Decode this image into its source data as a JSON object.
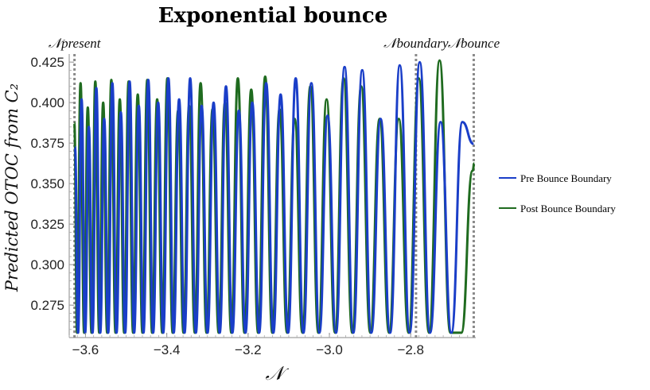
{
  "chart_data": {
    "type": "line",
    "title": "Exponential bounce",
    "xlabel": "𝒩",
    "ylabel": "Predicted OTOC from C₂",
    "xlim": [
      -3.64,
      -2.64
    ],
    "ylim": [
      0.255,
      0.43
    ],
    "x_ticks": [
      -3.6,
      -3.4,
      -3.2,
      -3.0,
      -2.8
    ],
    "x_tick_labels": [
      "−3.6",
      "−3.4",
      "−3.2",
      "−3.0",
      "−2.8"
    ],
    "y_ticks": [
      0.275,
      0.3,
      0.325,
      0.35,
      0.375,
      0.4,
      0.425
    ],
    "y_tick_labels": [
      "0.275",
      "0.300",
      "0.325",
      "0.350",
      "0.375",
      "0.400",
      "0.425"
    ],
    "grid": false,
    "legend_position": "right",
    "vertical_markers": [
      {
        "label": "𝒩present",
        "x": -3.627
      },
      {
        "label": "𝒩boundary",
        "x": -2.787
      },
      {
        "label": "𝒩bounce",
        "x": -2.645
      }
    ],
    "series": [
      {
        "name": "Pre Bounce Boundary",
        "color": "#1a3ec8",
        "x": [
          -3.6258,
          -3.6182,
          -3.6096,
          -3.6008,
          -3.5918,
          -3.5826,
          -3.5733,
          -3.5637,
          -3.554,
          -3.5441,
          -3.5339,
          -3.5236,
          -3.5131,
          -3.5023,
          -3.4914,
          -3.4803,
          -3.4689,
          -3.4573,
          -3.4455,
          -3.4335,
          -3.4212,
          -3.4087,
          -3.396,
          -3.383,
          -3.3697,
          -3.3563,
          -3.3425,
          -3.3285,
          -3.3143,
          -3.2997,
          -3.2849,
          -3.2698,
          -3.2544,
          -3.2387,
          -3.2227,
          -3.2064,
          -3.1898,
          -3.1728,
          -3.1555,
          -3.1379,
          -3.12,
          -3.1016,
          -3.0829,
          -3.0639,
          -3.0444,
          -3.0246,
          -3.0044,
          -2.9837,
          -2.9627,
          -2.9412,
          -2.9193,
          -2.8969,
          -2.874,
          -2.8507,
          -2.8269,
          -2.8026,
          -2.7778,
          -2.7524,
          -2.7265,
          -2.7,
          -2.673,
          -2.6453
        ],
        "y": [
          0.3725,
          0.258,
          0.402,
          0.258,
          0.385,
          0.258,
          0.409,
          0.258,
          0.39,
          0.258,
          0.412,
          0.258,
          0.394,
          0.258,
          0.413,
          0.258,
          0.398,
          0.258,
          0.414,
          0.258,
          0.4,
          0.258,
          0.415,
          0.258,
          0.402,
          0.258,
          0.415,
          0.258,
          0.398,
          0.258,
          0.4,
          0.258,
          0.41,
          0.258,
          0.395,
          0.258,
          0.4,
          0.258,
          0.412,
          0.258,
          0.405,
          0.258,
          0.415,
          0.258,
          0.412,
          0.258,
          0.392,
          0.258,
          0.422,
          0.258,
          0.42,
          0.258,
          0.39,
          0.258,
          0.423,
          0.258,
          0.425,
          0.258,
          0.388,
          0.258,
          0.388,
          0.3745
        ]
      },
      {
        "name": "Post Bounce Boundary",
        "color": "#1f6b1f",
        "x": [
          -3.6275,
          -3.6207,
          -3.6121,
          -3.6033,
          -3.5943,
          -3.5851,
          -3.5758,
          -3.5662,
          -3.5565,
          -3.5466,
          -3.5364,
          -3.5261,
          -3.5156,
          -3.5048,
          -3.4939,
          -3.4828,
          -3.4714,
          -3.4598,
          -3.448,
          -3.436,
          -3.4237,
          -3.4112,
          -3.3985,
          -3.3855,
          -3.3722,
          -3.3588,
          -3.345,
          -3.331,
          -3.3168,
          -3.3022,
          -3.2874,
          -3.2723,
          -3.2569,
          -3.2412,
          -3.2252,
          -3.2089,
          -3.1923,
          -3.1753,
          -3.158,
          -3.1404,
          -3.1225,
          -3.1041,
          -3.0854,
          -3.0664,
          -3.0469,
          -3.0271,
          -3.0069,
          -2.9862,
          -2.9652,
          -2.9437,
          -2.9218,
          -2.8994,
          -2.8765,
          -2.8532,
          -2.8294,
          -2.8051,
          -2.7803,
          -2.7549,
          -2.729,
          -2.7025,
          -2.6755,
          -2.6478,
          -2.6435
        ],
        "y": [
          0.3875,
          0.258,
          0.412,
          0.258,
          0.397,
          0.258,
          0.413,
          0.258,
          0.4,
          0.258,
          0.414,
          0.258,
          0.402,
          0.258,
          0.413,
          0.258,
          0.405,
          0.258,
          0.414,
          0.258,
          0.402,
          0.258,
          0.415,
          0.258,
          0.395,
          0.258,
          0.398,
          0.258,
          0.412,
          0.258,
          0.396,
          0.258,
          0.4,
          0.258,
          0.415,
          0.258,
          0.408,
          0.258,
          0.416,
          0.258,
          0.396,
          0.258,
          0.39,
          0.258,
          0.41,
          0.258,
          0.402,
          0.258,
          0.415,
          0.258,
          0.41,
          0.258,
          0.39,
          0.258,
          0.39,
          0.258,
          0.415,
          0.258,
          0.426,
          0.258,
          0.258,
          0.358,
          0.3625
        ]
      }
    ]
  }
}
